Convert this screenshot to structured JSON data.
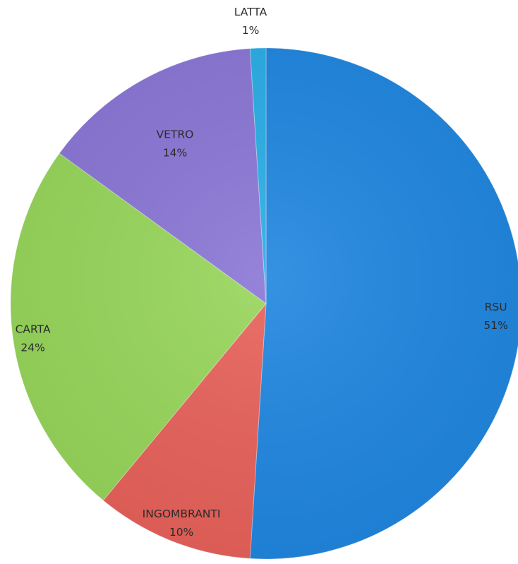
{
  "chart_data": {
    "type": "pie",
    "title": "",
    "slices": [
      {
        "label": "RSU",
        "value": 51,
        "display": "51%",
        "color": "#1f86e0"
      },
      {
        "label": "INGOMBRANTI",
        "value": 10,
        "display": "10%",
        "color": "#e8615a"
      },
      {
        "label": "CARTA",
        "value": 24,
        "display": "24%",
        "color": "#97d65a"
      },
      {
        "label": "VETRO",
        "value": 14,
        "display": "14%",
        "color": "#8a76d6"
      },
      {
        "label": "LATTA",
        "value": 1,
        "display": "1%",
        "color": "#29aee6"
      }
    ],
    "start": "12 o'clock",
    "direction": "clockwise",
    "legend": "none",
    "data_labels": "category and percent"
  }
}
